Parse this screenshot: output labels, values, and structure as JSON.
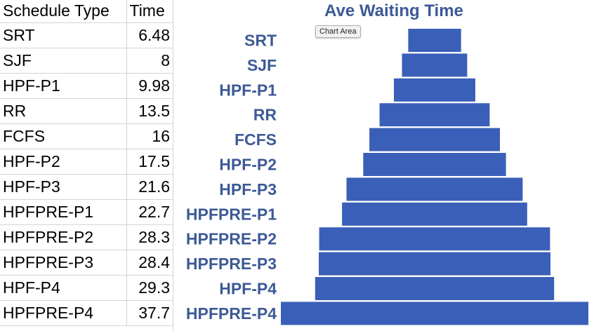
{
  "table": {
    "headers": [
      "Schedule Type",
      "Time"
    ],
    "rows": [
      {
        "name": "SRT",
        "time": "6.48"
      },
      {
        "name": "SJF",
        "time": "8"
      },
      {
        "name": "HPF-P1",
        "time": "9.98"
      },
      {
        "name": "RR",
        "time": "13.5"
      },
      {
        "name": "FCFS",
        "time": "16"
      },
      {
        "name": "HPF-P2",
        "time": "17.5"
      },
      {
        "name": "HPF-P3",
        "time": "21.6"
      },
      {
        "name": "HPFPRE-P1",
        "time": "22.7"
      },
      {
        "name": "HPFPRE-P2",
        "time": "28.3"
      },
      {
        "name": "HPFPRE-P3",
        "time": "28.4"
      },
      {
        "name": "HPF-P4",
        "time": "29.3"
      },
      {
        "name": "HPFPRE-P4",
        "time": "37.7"
      }
    ]
  },
  "tooltip": "Chart Area",
  "colors": {
    "bar": "#3a5fb8",
    "label": "#3d5a96",
    "title": "#3d5a96"
  },
  "chart_data": {
    "type": "bar",
    "orientation": "horizontal-funnel",
    "title": "Ave Waiting Time",
    "categories": [
      "SRT",
      "SJF",
      "HPF-P1",
      "RR",
      "FCFS",
      "HPF-P2",
      "HPF-P3",
      "HPFPRE-P1",
      "HPFPRE-P2",
      "HPFPRE-P3",
      "HPF-P4",
      "HPFPRE-P4"
    ],
    "values": [
      6.48,
      8,
      9.98,
      13.5,
      16,
      17.5,
      21.6,
      22.7,
      28.3,
      28.4,
      29.3,
      37.7
    ],
    "xlabel": "",
    "ylabel": "",
    "grid": false,
    "legend": "none"
  }
}
